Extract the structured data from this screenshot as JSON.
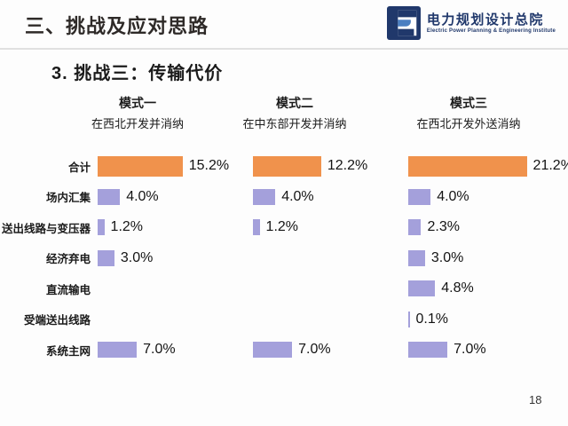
{
  "header": {
    "title": "三、挑战及应对思路",
    "logo": {
      "icon": "eppei-logo-icon",
      "name_cn": "电力规划设计总院",
      "name_en": "Electric Power Planning & Engineering Institute",
      "brand_color": "#20386b"
    }
  },
  "slide": {
    "subtitle": "3. 挑战三：传输代价",
    "page_number": "18"
  },
  "chart_data": {
    "type": "bar",
    "orientation": "horizontal",
    "unit": "%",
    "xlim": [
      0,
      22
    ],
    "grid": false,
    "legend": "none",
    "value_labels": "right-of-bar",
    "categories": [
      "合计",
      "场内汇集",
      "送出线路与变压器",
      "经济弃电",
      "直流输电",
      "受端送出线路",
      "系统主网"
    ],
    "series": [
      {
        "name": "模式一",
        "subtitle": "在西北开发并消纳",
        "values": [
          15.2,
          4.0,
          1.2,
          3.0,
          null,
          null,
          7.0
        ]
      },
      {
        "name": "模式二",
        "subtitle": "在中东部开发并消纳",
        "values": [
          12.2,
          4.0,
          1.2,
          null,
          null,
          null,
          7.0
        ]
      },
      {
        "name": "模式三",
        "subtitle": "在西北开发外送消纳",
        "values": [
          21.2,
          4.0,
          2.3,
          3.0,
          4.8,
          0.1,
          7.0
        ]
      }
    ],
    "colors": {
      "total_bar": "#F0924C",
      "item_bar": "#A4A0DB"
    }
  }
}
